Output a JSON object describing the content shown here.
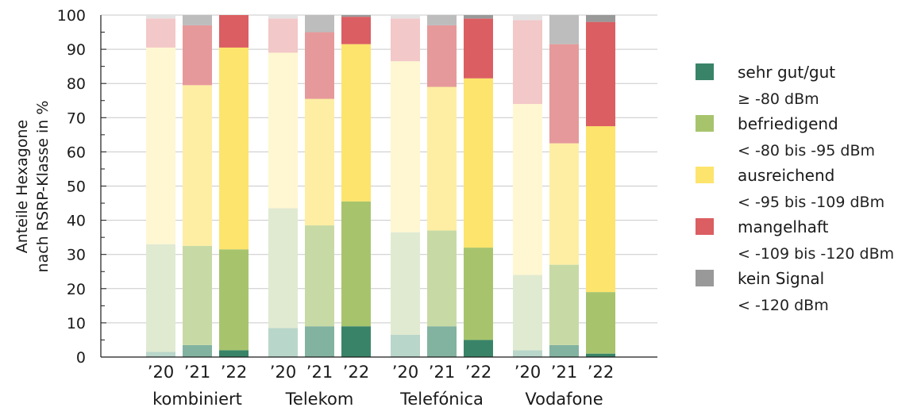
{
  "chart_data": {
    "type": "bar",
    "stacked": true,
    "xlabel": "",
    "ylabel_lines": [
      "Anteile Hexagone",
      "nach RSRP-Klasse in %"
    ],
    "ylim": [
      0,
      100
    ],
    "yticks": [
      0,
      10,
      20,
      30,
      40,
      50,
      60,
      70,
      80,
      90,
      100
    ],
    "grid": true,
    "legend_position": "right",
    "groups": [
      {
        "label": "kombiniert",
        "years": [
          "’20",
          "’21",
          "’22"
        ],
        "stacks": [
          [
            1.5,
            31.5,
            57.5,
            8.5,
            1.0
          ],
          [
            3.5,
            29.0,
            47.0,
            17.5,
            3.0
          ],
          [
            2.0,
            29.5,
            59.0,
            9.5,
            0.0
          ]
        ]
      },
      {
        "label": "Telekom",
        "years": [
          "’20",
          "’21",
          "’22"
        ],
        "stacks": [
          [
            8.5,
            35.0,
            45.5,
            10.0,
            1.0
          ],
          [
            9.0,
            29.5,
            37.0,
            19.5,
            5.0
          ],
          [
            9.0,
            36.5,
            46.0,
            8.0,
            0.5
          ]
        ]
      },
      {
        "label": "Telefónica",
        "years": [
          "’20",
          "’21",
          "’22"
        ],
        "stacks": [
          [
            6.5,
            30.0,
            50.0,
            12.5,
            1.0
          ],
          [
            9.0,
            28.0,
            42.0,
            18.0,
            3.0
          ],
          [
            5.0,
            27.0,
            49.5,
            17.5,
            1.0
          ]
        ]
      },
      {
        "label": "Vodafone",
        "years": [
          "’20",
          "’21",
          "’22"
        ],
        "stacks": [
          [
            2.0,
            22.0,
            50.0,
            24.5,
            1.5
          ],
          [
            3.5,
            23.5,
            35.5,
            29.0,
            8.5
          ],
          [
            1.0,
            18.0,
            48.5,
            30.5,
            2.0
          ]
        ]
      }
    ],
    "series": [
      {
        "name": "sehr gut/gut",
        "range": "≥ -80 dBm",
        "colors": [
          "#b9d6ca",
          "#82b3a0",
          "#398468"
        ]
      },
      {
        "name": "befriedigend",
        "range": "< -80 bis -95 dBm",
        "colors": [
          "#e0ead1",
          "#c7daa5",
          "#a7c46d"
        ]
      },
      {
        "name": "ausreichend",
        "range": "< -95 bis -109 dBm",
        "colors": [
          "#fef7d1",
          "#fdeea3",
          "#fde46c"
        ]
      },
      {
        "name": "mangelhaft",
        "range": "< -109 bis -120 dBm",
        "colors": [
          "#f3c8c8",
          "#e6999a",
          "#db5e62"
        ]
      },
      {
        "name": "kein Signal",
        "range": "< -120 dBm",
        "colors": [
          "#e3e3e3",
          "#bdbdbd",
          "#999999"
        ]
      }
    ]
  }
}
